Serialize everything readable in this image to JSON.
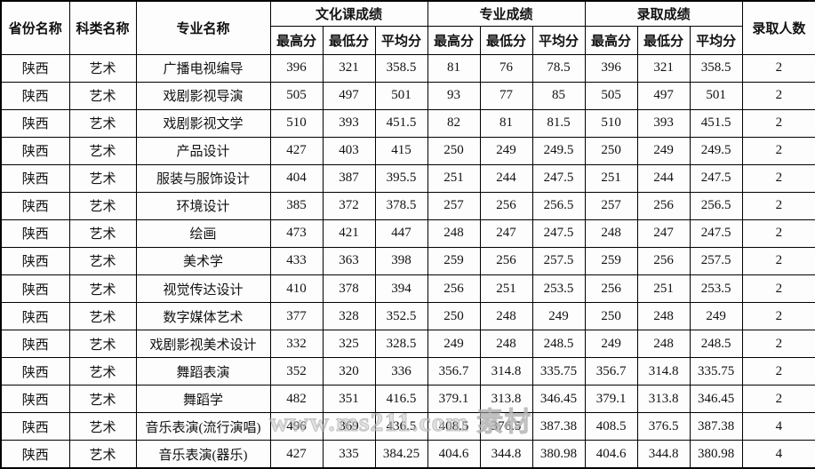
{
  "colors": {
    "border": "#000000",
    "text": "#111111",
    "background": "#ffffff",
    "watermark": "#c8c8c8"
  },
  "watermark": {
    "text": "www.ms211.com 素材"
  },
  "table": {
    "headers": {
      "province": "省份名称",
      "category": "科类名称",
      "major": "专业名称",
      "culture_group": "文化课成绩",
      "major_group": "专业成绩",
      "admission_group": "录取成绩",
      "admit_count": "录取人数"
    },
    "subheaders": [
      "最高分",
      "最低分",
      "平均分",
      "最高分",
      "最低分",
      "平均分",
      "最高分",
      "最低分",
      "平均分"
    ],
    "rows": [
      [
        "陕西",
        "艺术",
        "广播电视编导",
        "396",
        "321",
        "358.5",
        "81",
        "76",
        "78.5",
        "396",
        "321",
        "358.5",
        "2"
      ],
      [
        "陕西",
        "艺术",
        "戏剧影视导演",
        "505",
        "497",
        "501",
        "93",
        "77",
        "85",
        "505",
        "497",
        "501",
        "2"
      ],
      [
        "陕西",
        "艺术",
        "戏剧影视文学",
        "510",
        "393",
        "451.5",
        "82",
        "81",
        "81.5",
        "510",
        "393",
        "451.5",
        "2"
      ],
      [
        "陕西",
        "艺术",
        "产品设计",
        "427",
        "403",
        "415",
        "250",
        "249",
        "249.5",
        "250",
        "249",
        "249.5",
        "2"
      ],
      [
        "陕西",
        "艺术",
        "服装与服饰设计",
        "404",
        "387",
        "395.5",
        "251",
        "244",
        "247.5",
        "251",
        "244",
        "247.5",
        "2"
      ],
      [
        "陕西",
        "艺术",
        "环境设计",
        "385",
        "372",
        "378.5",
        "257",
        "256",
        "256.5",
        "257",
        "256",
        "256.5",
        "2"
      ],
      [
        "陕西",
        "艺术",
        "绘画",
        "473",
        "421",
        "447",
        "248",
        "247",
        "247.5",
        "248",
        "247",
        "247.5",
        "2"
      ],
      [
        "陕西",
        "艺术",
        "美术学",
        "433",
        "363",
        "398",
        "259",
        "256",
        "257.5",
        "259",
        "256",
        "257.5",
        "2"
      ],
      [
        "陕西",
        "艺术",
        "视觉传达设计",
        "410",
        "378",
        "394",
        "256",
        "251",
        "253.5",
        "256",
        "251",
        "253.5",
        "2"
      ],
      [
        "陕西",
        "艺术",
        "数字媒体艺术",
        "377",
        "328",
        "352.5",
        "250",
        "248",
        "249",
        "250",
        "248",
        "249",
        "2"
      ],
      [
        "陕西",
        "艺术",
        "戏剧影视美术设计",
        "332",
        "325",
        "328.5",
        "249",
        "248",
        "248.5",
        "249",
        "248",
        "248.5",
        "2"
      ],
      [
        "陕西",
        "艺术",
        "舞蹈表演",
        "352",
        "320",
        "336",
        "356.7",
        "314.8",
        "335.75",
        "356.7",
        "314.8",
        "335.75",
        "2"
      ],
      [
        "陕西",
        "艺术",
        "舞蹈学",
        "482",
        "351",
        "416.5",
        "379.1",
        "313.8",
        "346.45",
        "379.1",
        "313.8",
        "346.45",
        "2"
      ],
      [
        "陕西",
        "艺术",
        "音乐表演(流行演唱)",
        "496",
        "369",
        "436.5",
        "408.5",
        "376.5",
        "387.38",
        "408.5",
        "376.5",
        "387.38",
        "4"
      ],
      [
        "陕西",
        "艺术",
        "音乐表演(器乐)",
        "427",
        "335",
        "384.25",
        "404.6",
        "344.8",
        "380.98",
        "404.6",
        "344.8",
        "380.98",
        "4"
      ]
    ]
  }
}
